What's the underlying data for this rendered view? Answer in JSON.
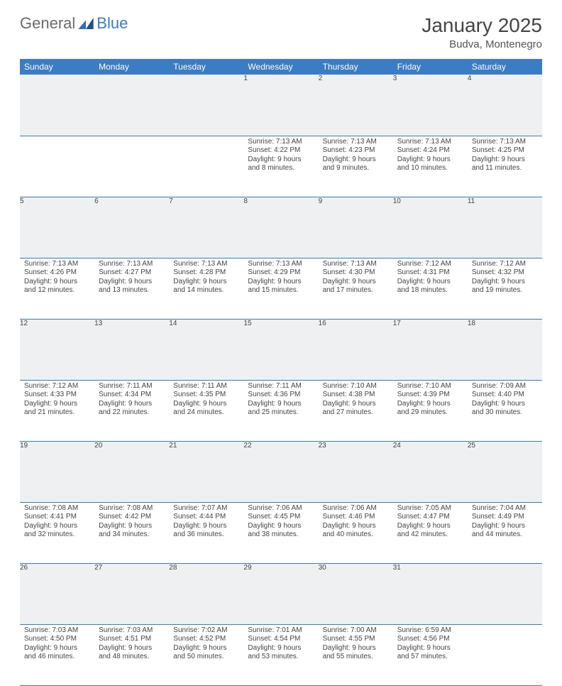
{
  "brand": {
    "word1": "General",
    "word2": "Blue"
  },
  "title": "January 2025",
  "location": "Budva, Montenegro",
  "colors": {
    "header_bg": "#3b7cc4",
    "header_fg": "#ffffff",
    "daynum_bg": "#eef0f2",
    "text": "#444444",
    "row_border": "#3b7cc4",
    "page_bg": "#ffffff"
  },
  "typography": {
    "title_fontsize": 28,
    "location_fontsize": 15,
    "header_fontsize": 12,
    "cell_fontsize": 10
  },
  "layout": {
    "columns": 7,
    "rows": 5
  },
  "day_headers": [
    "Sunday",
    "Monday",
    "Tuesday",
    "Wednesday",
    "Thursday",
    "Friday",
    "Saturday"
  ],
  "weeks": [
    [
      null,
      null,
      null,
      {
        "n": "1",
        "sunrise": "7:13 AM",
        "sunset": "4:22 PM",
        "daylight": "9 hours and 8 minutes."
      },
      {
        "n": "2",
        "sunrise": "7:13 AM",
        "sunset": "4:23 PM",
        "daylight": "9 hours and 9 minutes."
      },
      {
        "n": "3",
        "sunrise": "7:13 AM",
        "sunset": "4:24 PM",
        "daylight": "9 hours and 10 minutes."
      },
      {
        "n": "4",
        "sunrise": "7:13 AM",
        "sunset": "4:25 PM",
        "daylight": "9 hours and 11 minutes."
      }
    ],
    [
      {
        "n": "5",
        "sunrise": "7:13 AM",
        "sunset": "4:26 PM",
        "daylight": "9 hours and 12 minutes."
      },
      {
        "n": "6",
        "sunrise": "7:13 AM",
        "sunset": "4:27 PM",
        "daylight": "9 hours and 13 minutes."
      },
      {
        "n": "7",
        "sunrise": "7:13 AM",
        "sunset": "4:28 PM",
        "daylight": "9 hours and 14 minutes."
      },
      {
        "n": "8",
        "sunrise": "7:13 AM",
        "sunset": "4:29 PM",
        "daylight": "9 hours and 15 minutes."
      },
      {
        "n": "9",
        "sunrise": "7:13 AM",
        "sunset": "4:30 PM",
        "daylight": "9 hours and 17 minutes."
      },
      {
        "n": "10",
        "sunrise": "7:12 AM",
        "sunset": "4:31 PM",
        "daylight": "9 hours and 18 minutes."
      },
      {
        "n": "11",
        "sunrise": "7:12 AM",
        "sunset": "4:32 PM",
        "daylight": "9 hours and 19 minutes."
      }
    ],
    [
      {
        "n": "12",
        "sunrise": "7:12 AM",
        "sunset": "4:33 PM",
        "daylight": "9 hours and 21 minutes."
      },
      {
        "n": "13",
        "sunrise": "7:11 AM",
        "sunset": "4:34 PM",
        "daylight": "9 hours and 22 minutes."
      },
      {
        "n": "14",
        "sunrise": "7:11 AM",
        "sunset": "4:35 PM",
        "daylight": "9 hours and 24 minutes."
      },
      {
        "n": "15",
        "sunrise": "7:11 AM",
        "sunset": "4:36 PM",
        "daylight": "9 hours and 25 minutes."
      },
      {
        "n": "16",
        "sunrise": "7:10 AM",
        "sunset": "4:38 PM",
        "daylight": "9 hours and 27 minutes."
      },
      {
        "n": "17",
        "sunrise": "7:10 AM",
        "sunset": "4:39 PM",
        "daylight": "9 hours and 29 minutes."
      },
      {
        "n": "18",
        "sunrise": "7:09 AM",
        "sunset": "4:40 PM",
        "daylight": "9 hours and 30 minutes."
      }
    ],
    [
      {
        "n": "19",
        "sunrise": "7:08 AM",
        "sunset": "4:41 PM",
        "daylight": "9 hours and 32 minutes."
      },
      {
        "n": "20",
        "sunrise": "7:08 AM",
        "sunset": "4:42 PM",
        "daylight": "9 hours and 34 minutes."
      },
      {
        "n": "21",
        "sunrise": "7:07 AM",
        "sunset": "4:44 PM",
        "daylight": "9 hours and 36 minutes."
      },
      {
        "n": "22",
        "sunrise": "7:06 AM",
        "sunset": "4:45 PM",
        "daylight": "9 hours and 38 minutes."
      },
      {
        "n": "23",
        "sunrise": "7:06 AM",
        "sunset": "4:46 PM",
        "daylight": "9 hours and 40 minutes."
      },
      {
        "n": "24",
        "sunrise": "7:05 AM",
        "sunset": "4:47 PM",
        "daylight": "9 hours and 42 minutes."
      },
      {
        "n": "25",
        "sunrise": "7:04 AM",
        "sunset": "4:49 PM",
        "daylight": "9 hours and 44 minutes."
      }
    ],
    [
      {
        "n": "26",
        "sunrise": "7:03 AM",
        "sunset": "4:50 PM",
        "daylight": "9 hours and 46 minutes."
      },
      {
        "n": "27",
        "sunrise": "7:03 AM",
        "sunset": "4:51 PM",
        "daylight": "9 hours and 48 minutes."
      },
      {
        "n": "28",
        "sunrise": "7:02 AM",
        "sunset": "4:52 PM",
        "daylight": "9 hours and 50 minutes."
      },
      {
        "n": "29",
        "sunrise": "7:01 AM",
        "sunset": "4:54 PM",
        "daylight": "9 hours and 53 minutes."
      },
      {
        "n": "30",
        "sunrise": "7:00 AM",
        "sunset": "4:55 PM",
        "daylight": "9 hours and 55 minutes."
      },
      {
        "n": "31",
        "sunrise": "6:59 AM",
        "sunset": "4:56 PM",
        "daylight": "9 hours and 57 minutes."
      },
      null
    ]
  ],
  "labels": {
    "sunrise": "Sunrise: ",
    "sunset": "Sunset: ",
    "daylight": "Daylight: "
  }
}
